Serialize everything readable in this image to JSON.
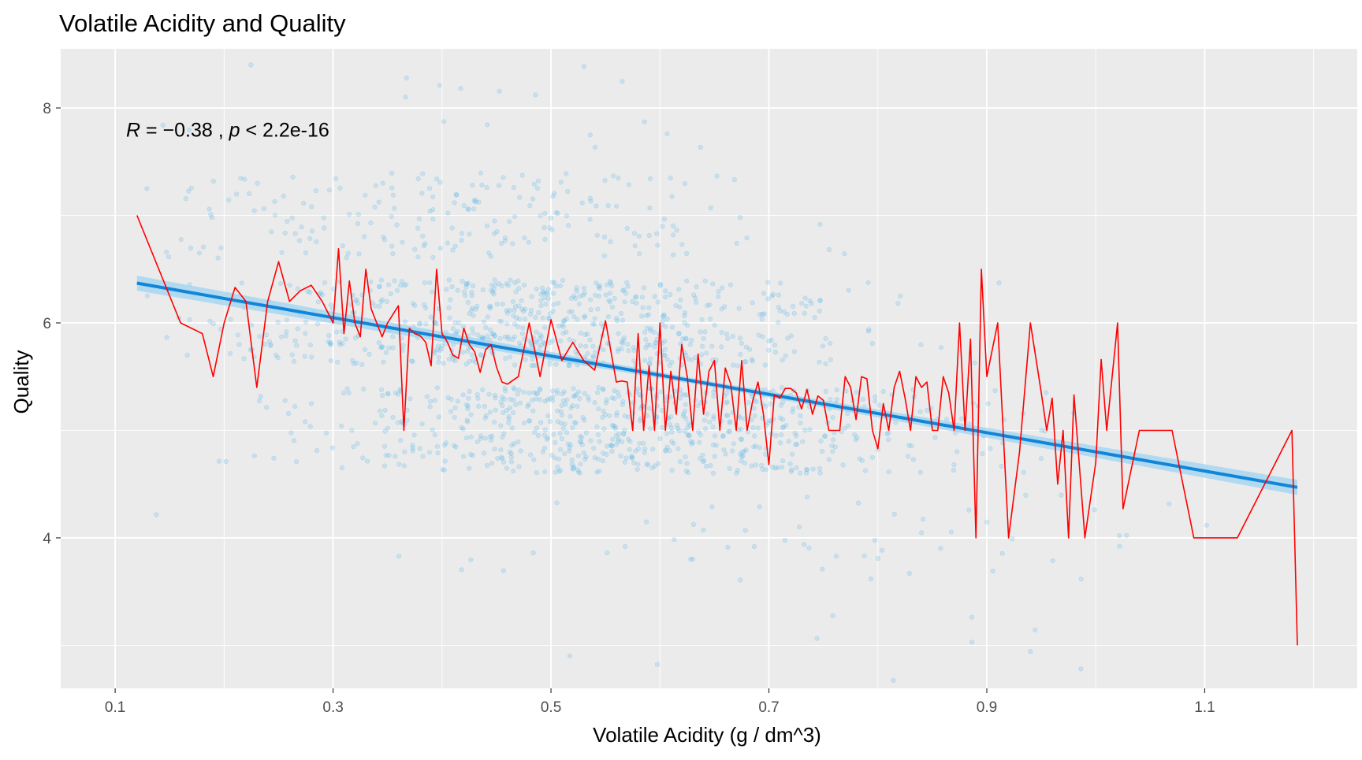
{
  "chart_data": {
    "type": "scatter",
    "title": "Volatile Acidity and Quality",
    "xlabel": "Volatile Acidity (g / dm^3)",
    "ylabel": "Quality",
    "xlim": [
      0.05,
      1.24
    ],
    "ylim": [
      2.6,
      8.55
    ],
    "x_ticks": [
      0.1,
      0.3,
      0.5,
      0.7,
      0.9,
      1.1
    ],
    "x_tick_labels": [
      "0.1",
      "0.3",
      "0.5",
      "0.7",
      "0.9",
      "1.1"
    ],
    "y_ticks": [
      4,
      6,
      8
    ],
    "y_tick_labels": [
      "4",
      "6",
      "8"
    ],
    "grid": true,
    "annotation": {
      "r_symbol": "R",
      "r_text": " = −0.38 , ",
      "p_symbol": "p",
      "p_text": " < 2.2e-16",
      "x": 0.11,
      "y": 7.8
    },
    "colors": {
      "panel": "#ebebeb",
      "grid": "#ffffff",
      "points": "#56b4e9",
      "fit_line": "#1185d8",
      "ci_band": "#9ed4f2",
      "mean_line": "#ff0000"
    },
    "fit": {
      "x": [
        0.12,
        1.185
      ],
      "y": [
        6.37,
        4.47
      ],
      "ci_halfwidth": [
        0.07,
        0.025,
        0.07
      ]
    },
    "mean_line": {
      "x": [
        0.12,
        0.16,
        0.18,
        0.19,
        0.2,
        0.21,
        0.22,
        0.23,
        0.24,
        0.25,
        0.26,
        0.27,
        0.28,
        0.29,
        0.3,
        0.305,
        0.31,
        0.315,
        0.32,
        0.325,
        0.33,
        0.335,
        0.34,
        0.345,
        0.35,
        0.355,
        0.36,
        0.365,
        0.37,
        0.375,
        0.38,
        0.385,
        0.39,
        0.395,
        0.4,
        0.405,
        0.41,
        0.415,
        0.42,
        0.425,
        0.43,
        0.435,
        0.44,
        0.445,
        0.45,
        0.455,
        0.46,
        0.47,
        0.48,
        0.49,
        0.5,
        0.51,
        0.52,
        0.53,
        0.54,
        0.55,
        0.56,
        0.565,
        0.57,
        0.575,
        0.58,
        0.585,
        0.59,
        0.595,
        0.6,
        0.605,
        0.61,
        0.615,
        0.62,
        0.625,
        0.63,
        0.635,
        0.64,
        0.645,
        0.65,
        0.655,
        0.66,
        0.665,
        0.67,
        0.675,
        0.68,
        0.685,
        0.69,
        0.695,
        0.7,
        0.705,
        0.71,
        0.715,
        0.72,
        0.725,
        0.73,
        0.735,
        0.74,
        0.745,
        0.75,
        0.755,
        0.76,
        0.765,
        0.77,
        0.775,
        0.78,
        0.785,
        0.79,
        0.795,
        0.8,
        0.805,
        0.81,
        0.815,
        0.82,
        0.825,
        0.83,
        0.835,
        0.84,
        0.845,
        0.85,
        0.855,
        0.86,
        0.865,
        0.87,
        0.875,
        0.88,
        0.885,
        0.89,
        0.895,
        0.9,
        0.91,
        0.92,
        0.93,
        0.94,
        0.95,
        0.955,
        0.96,
        0.965,
        0.97,
        0.975,
        0.98,
        0.99,
        1.0,
        1.005,
        1.01,
        1.02,
        1.025,
        1.04,
        1.07,
        1.09,
        1.13,
        1.18,
        1.185
      ],
      "y": [
        7.0,
        6.0,
        5.9,
        5.5,
        6.0,
        6.33,
        6.2,
        5.4,
        6.2,
        6.57,
        6.2,
        6.3,
        6.35,
        6.2,
        6.0,
        6.69,
        5.9,
        6.39,
        6.0,
        5.87,
        6.5,
        6.13,
        6.0,
        5.87,
        6.0,
        6.08,
        6.16,
        5.0,
        5.95,
        5.9,
        5.88,
        5.82,
        5.6,
        6.5,
        5.9,
        5.82,
        5.7,
        5.67,
        5.95,
        5.8,
        5.73,
        5.54,
        5.75,
        5.8,
        5.59,
        5.45,
        5.43,
        5.5,
        6.0,
        5.5,
        6.03,
        5.65,
        5.82,
        5.65,
        5.56,
        6.02,
        5.45,
        5.46,
        5.45,
        5.0,
        5.9,
        5.0,
        5.6,
        5.0,
        6.0,
        5.0,
        5.55,
        5.15,
        5.8,
        5.5,
        5.0,
        5.71,
        5.15,
        5.55,
        5.65,
        5.0,
        5.58,
        5.43,
        5.0,
        5.65,
        5.0,
        5.27,
        5.45,
        5.15,
        4.68,
        5.33,
        5.3,
        5.39,
        5.39,
        5.35,
        5.2,
        5.38,
        5.15,
        5.32,
        5.28,
        5.0,
        5.0,
        5.0,
        5.5,
        5.4,
        5.1,
        5.5,
        5.48,
        5.0,
        4.83,
        5.25,
        5.0,
        5.4,
        5.55,
        5.3,
        5.0,
        5.5,
        5.4,
        5.45,
        5.0,
        5.0,
        5.5,
        5.35,
        5.0,
        6.0,
        5.0,
        5.85,
        4.0,
        6.5,
        5.5,
        6.0,
        4.0,
        4.8,
        6.0,
        5.35,
        5.0,
        5.3,
        4.5,
        5.0,
        4.0,
        5.33,
        4.0,
        4.7,
        5.66,
        5.0,
        6.0,
        4.27,
        5.0,
        5.0,
        4.0,
        4.0,
        5.0,
        3.0
      ]
    }
  }
}
